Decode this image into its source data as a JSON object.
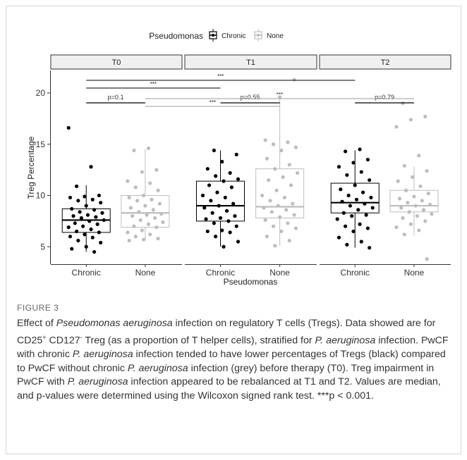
{
  "chart_data": {
    "type": "boxplot",
    "ylabel": "Treg Percentage",
    "xlabel": "Pseudomonas",
    "ylim": [
      3.3,
      22.2
    ],
    "yticks": [
      5,
      10,
      15,
      20
    ],
    "legend": {
      "title": "Pseudomonas",
      "position": "top",
      "entries": [
        "Chronic",
        "None"
      ]
    },
    "colors": {
      "Chronic": "#000000",
      "None": "#bdbdbd",
      "strip_fill": "#f0f0f0"
    },
    "grid": false,
    "panels": [
      {
        "label": "T0",
        "categories": [
          "Chronic",
          "None"
        ],
        "groups": [
          {
            "series": "Chronic",
            "min": 4.5,
            "q1": 6.4,
            "median": 7.6,
            "q3": 8.7,
            "max": 11.0,
            "points": [
              16.6,
              12.8,
              10.9,
              10.0,
              9.9,
              9.8,
              9.6,
              9.5,
              9.3,
              9.0,
              8.7,
              8.6,
              8.4,
              8.3,
              8.1,
              8.0,
              7.9,
              7.8,
              7.6,
              7.5,
              7.3,
              7.2,
              7.0,
              6.9,
              6.7,
              6.5,
              6.4,
              6.2,
              6.0,
              5.9,
              5.6,
              5.4,
              5.0,
              4.8,
              4.5
            ]
          },
          {
            "series": "None",
            "min": 5.6,
            "q1": 6.9,
            "median": 8.3,
            "q3": 10.0,
            "max": 14.5,
            "points": [
              14.6,
              14.4,
              12.5,
              12.3,
              11.4,
              11.2,
              10.8,
              10.5,
              10.0,
              9.8,
              9.6,
              9.5,
              9.2,
              9.0,
              8.8,
              8.6,
              8.4,
              8.2,
              8.1,
              8.0,
              7.8,
              7.6,
              7.4,
              7.2,
              7.0,
              6.9,
              6.6,
              6.4,
              6.2,
              6.0,
              5.8,
              5.7,
              5.6
            ]
          }
        ],
        "pvalue": {
          "label": "p=0.1"
        }
      },
      {
        "label": "T1",
        "categories": [
          "Chronic",
          "None"
        ],
        "groups": [
          {
            "series": "Chronic",
            "min": 5.0,
            "q1": 7.5,
            "median": 9.0,
            "q3": 11.4,
            "max": 14.4,
            "points": [
              14.4,
              14.0,
              13.3,
              12.6,
              12.2,
              11.9,
              11.6,
              11.4,
              11.0,
              10.8,
              10.3,
              10.0,
              9.8,
              9.5,
              9.2,
              9.0,
              8.8,
              8.5,
              8.3,
              8.0,
              7.8,
              7.7,
              7.5,
              7.3,
              7.0,
              6.6,
              6.5,
              6.4,
              6.0,
              5.5,
              5.0
            ]
          },
          {
            "series": "None",
            "min": 5.1,
            "q1": 7.8,
            "median": 8.9,
            "q3": 12.6,
            "max": 19.4,
            "points": [
              21.3,
              19.6,
              15.4,
              15.2,
              15.0,
              14.7,
              14.4,
              13.6,
              13.0,
              12.6,
              12.2,
              11.8,
              11.5,
              11.0,
              10.5,
              10.0,
              9.8,
              9.5,
              9.2,
              9.0,
              8.8,
              8.6,
              8.4,
              8.1,
              7.9,
              7.6,
              7.3,
              7.0,
              6.8,
              6.5,
              6.0,
              5.6,
              5.1
            ]
          }
        ],
        "pvalue": {
          "label": "p=0.55"
        }
      },
      {
        "label": "T2",
        "categories": [
          "Chronic",
          "None"
        ],
        "groups": [
          {
            "series": "Chronic",
            "min": 4.9,
            "q1": 8.3,
            "median": 9.3,
            "q3": 11.2,
            "max": 14.4,
            "points": [
              14.5,
              14.3,
              13.5,
              13.2,
              12.8,
              12.3,
              12.0,
              11.5,
              11.0,
              10.6,
              10.3,
              10.0,
              9.8,
              9.6,
              9.4,
              9.2,
              9.0,
              8.8,
              8.6,
              8.3,
              8.1,
              8.0,
              7.7,
              7.2,
              7.0,
              6.8,
              6.5,
              5.9,
              5.5,
              5.2,
              4.9
            ]
          },
          {
            "series": "None",
            "min": 6.1,
            "q1": 8.4,
            "median": 9.0,
            "q3": 10.5,
            "max": 12.8,
            "points": [
              19.0,
              17.7,
              17.4,
              16.7,
              13.9,
              12.9,
              12.4,
              11.8,
              11.4,
              10.9,
              10.5,
              10.2,
              9.9,
              9.7,
              9.5,
              9.3,
              9.1,
              9.0,
              8.8,
              8.6,
              8.4,
              8.2,
              8.0,
              7.8,
              7.5,
              7.2,
              6.9,
              6.6,
              6.2,
              3.8
            ]
          }
        ],
        "pvalue": {
          "label": "p=0.79"
        }
      }
    ],
    "brackets": [
      {
        "label": "***",
        "from": "T0 Chronic",
        "to": "T2 Chronic",
        "color": "#000000",
        "y": 21.0
      },
      {
        "label": "***",
        "from": "T0 Chronic",
        "to": "T1 Chronic",
        "color": "#000000",
        "y": 19.5
      },
      {
        "label": "***",
        "from": "T0 None",
        "to": "T2 None",
        "color": "#9e9e9e",
        "y": 19.0
      },
      {
        "label": "***",
        "from": "T0 None",
        "to": "T1 None",
        "color": "#9e9e9e",
        "y": 18.5
      }
    ]
  },
  "caption": {
    "figure_label": "FIGURE 3"
  }
}
